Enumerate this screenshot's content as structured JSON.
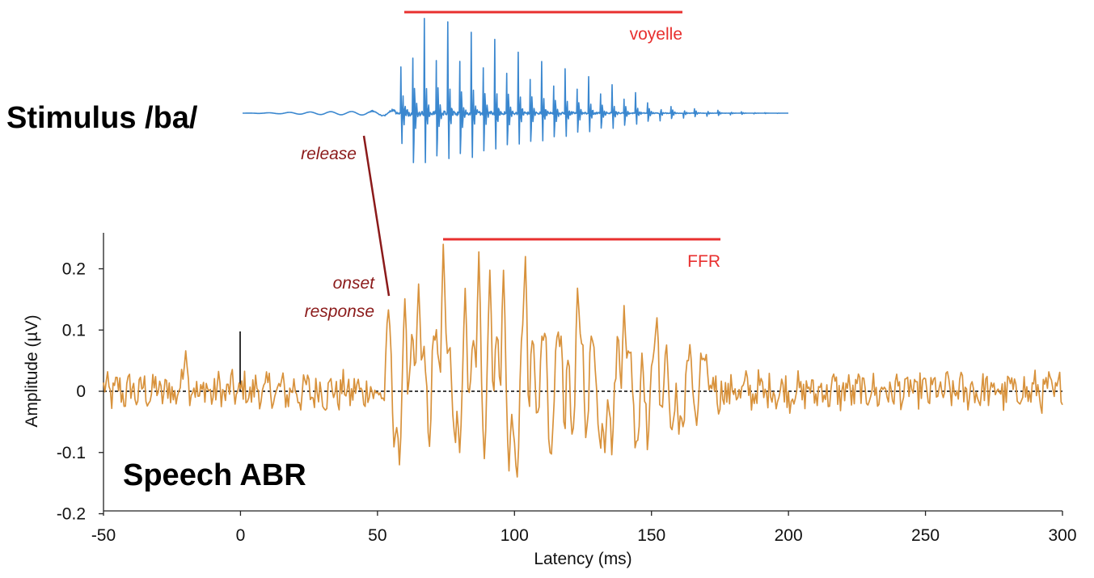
{
  "chart_data": {
    "type": "line",
    "title": "Speech ABR",
    "xlabel": "Latency (ms)",
    "ylabel": "Amplitude (µV)",
    "xlim": [
      -50,
      300
    ],
    "ylim": [
      -0.2,
      0.27
    ],
    "x_ticks": [
      "-50",
      "0",
      "50",
      "100",
      "150",
      "200",
      "250",
      "300"
    ],
    "y_ticks": [
      "-0.2",
      "-0.1",
      "0",
      "0.1",
      "0.2"
    ],
    "grid": false,
    "zero_line": "dashed",
    "stimulus_marker": {
      "x": 0,
      "y_from": 0,
      "y_to": 0.1
    },
    "series": [
      {
        "label": "Stimulus /ba/",
        "color": "#3a87cf",
        "x_range": [
          0,
          200
        ],
        "envelope_x": [
          0,
          10,
          20,
          30,
          40,
          46,
          52,
          58,
          60,
          70,
          80,
          90,
          100,
          110,
          120,
          130,
          140,
          150,
          160,
          170,
          180,
          190,
          200
        ],
        "envelope_amplitude": [
          0.0,
          0.05,
          0.12,
          0.18,
          0.2,
          0.24,
          0.33,
          0.45,
          1.0,
          0.92,
          0.85,
          0.75,
          0.63,
          0.52,
          0.42,
          0.33,
          0.24,
          0.16,
          0.1,
          0.06,
          0.03,
          0.01,
          0.0
        ],
        "pitch_period_ms": 4.3
      },
      {
        "label": "Speech ABR",
        "color": "#d8923c",
        "x_range": [
          -50,
          300
        ],
        "peaks": [
          {
            "x": -20,
            "y": 0.066
          },
          {
            "x": 54,
            "y": 0.133
          },
          {
            "x": 60,
            "y": 0.153
          },
          {
            "x": 65,
            "y": 0.175
          },
          {
            "x": 70,
            "y": 0.13
          },
          {
            "x": 74,
            "y": 0.24
          },
          {
            "x": 82,
            "y": 0.17
          },
          {
            "x": 87,
            "y": 0.23
          },
          {
            "x": 91,
            "y": 0.2
          },
          {
            "x": 96,
            "y": 0.2
          },
          {
            "x": 104,
            "y": 0.22
          },
          {
            "x": 110,
            "y": 0.09
          },
          {
            "x": 117,
            "y": 0.09
          },
          {
            "x": 123,
            "y": 0.17
          },
          {
            "x": 128,
            "y": 0.09
          },
          {
            "x": 140,
            "y": 0.14
          },
          {
            "x": 152,
            "y": 0.12
          },
          {
            "x": 163,
            "y": 0.05
          },
          {
            "x": 170,
            "y": 0.06
          }
        ],
        "troughs": [
          {
            "x": 58,
            "y": -0.12
          },
          {
            "x": 69,
            "y": -0.09
          },
          {
            "x": 80,
            "y": -0.1
          },
          {
            "x": 89,
            "y": -0.11
          },
          {
            "x": 98,
            "y": -0.13
          },
          {
            "x": 101,
            "y": -0.14
          },
          {
            "x": 113,
            "y": -0.1
          },
          {
            "x": 121,
            "y": -0.07
          },
          {
            "x": 133,
            "y": -0.1
          },
          {
            "x": 145,
            "y": -0.08
          },
          {
            "x": 160,
            "y": -0.07
          }
        ]
      }
    ],
    "annotations": [
      {
        "name": "voyelle",
        "text": "voyelle",
        "color": "#e8302f",
        "x_from": 58,
        "x_to": 161
      },
      {
        "name": "ffr",
        "text": "FFR",
        "color": "#e8302f",
        "x_from": 73,
        "x_to": 175
      },
      {
        "name": "release",
        "text": "release",
        "color": "#8b1a1a"
      },
      {
        "name": "onset",
        "lines": [
          "onset",
          "response"
        ],
        "color": "#8b1a1a"
      }
    ]
  }
}
